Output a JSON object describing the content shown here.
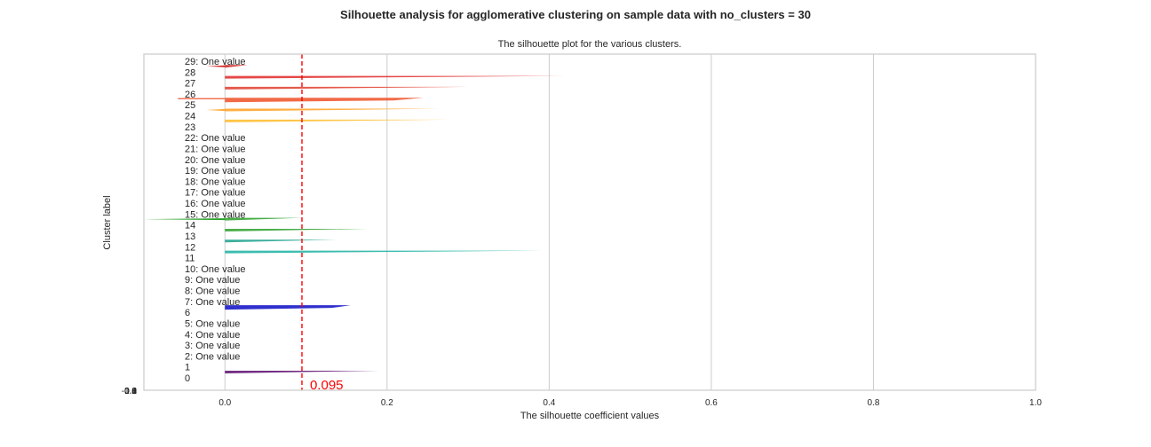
{
  "chart_data": {
    "type": "silhouette",
    "suptitle": "Silhouette analysis for agglomerative clustering on sample data with no_clusters = 30",
    "title": "The silhouette plot for the various clusters.",
    "xlabel": "The silhouette coefficient values",
    "ylabel": "Cluster label",
    "xlim": [
      -0.1,
      1.0
    ],
    "x_ticks": [
      0.0,
      0.2,
      0.4,
      0.6,
      0.8,
      1.0
    ],
    "x_tick_labels": [
      "0.0",
      "0.2",
      "0.4",
      "0.6",
      "0.8",
      "1.0"
    ],
    "y_tick_labels": [
      "-0.1",
      "0.0",
      "0.2",
      "0.4",
      "0.6",
      "0.8",
      "1.0"
    ],
    "grid": true,
    "mean_silhouette": 0.095,
    "mean_label": "0.095",
    "mean_line_color": "#ff0000",
    "clusters": [
      {
        "id": 0,
        "label": "0",
        "max": 0.19,
        "min": 0.0,
        "color": "#5b0a6e",
        "shape": "tri"
      },
      {
        "id": 1,
        "label": "1",
        "single": false,
        "color": "#5b0a6e",
        "shape": "none"
      },
      {
        "id": 2,
        "label": "2: One value",
        "single": true
      },
      {
        "id": 3,
        "label": "3: One value",
        "single": true
      },
      {
        "id": 4,
        "label": "4: One value",
        "single": true
      },
      {
        "id": 5,
        "label": "5: One value",
        "single": true
      },
      {
        "id": 6,
        "label": "6",
        "max": 0.155,
        "min": 0.0,
        "color": "#1a1ac8",
        "shape": "wedge"
      },
      {
        "id": 7,
        "label": "7: One value",
        "single": true
      },
      {
        "id": 8,
        "label": "8: One value",
        "single": true
      },
      {
        "id": 9,
        "label": "9: One value",
        "single": true
      },
      {
        "id": 10,
        "label": "10: One value",
        "single": true
      },
      {
        "id": 11,
        "label": "11",
        "max": 0.392,
        "min": 0.0,
        "color": "#1ab0a0",
        "shape": "tri"
      },
      {
        "id": 12,
        "label": "12",
        "max": 0.138,
        "min": 0.0,
        "color": "#1aa08c",
        "shape": "tri"
      },
      {
        "id": 13,
        "label": "13",
        "max": 0.175,
        "min": 0.0,
        "color": "#2ca02c",
        "shape": "tri"
      },
      {
        "id": 14,
        "label": "14",
        "max": 0.095,
        "min": -0.1,
        "color": "#28a028",
        "shape": "tri"
      },
      {
        "id": 15,
        "label": "15: One value",
        "single": true
      },
      {
        "id": 16,
        "label": "16: One value",
        "single": true
      },
      {
        "id": 17,
        "label": "17: One value",
        "single": true
      },
      {
        "id": 18,
        "label": "18: One value",
        "single": true
      },
      {
        "id": 19,
        "label": "19: One value",
        "single": true
      },
      {
        "id": 20,
        "label": "20: One value",
        "single": true
      },
      {
        "id": 21,
        "label": "21: One value",
        "single": true
      },
      {
        "id": 22,
        "label": "22: One value",
        "single": true
      },
      {
        "id": 23,
        "label": "23",
        "max": 0.276,
        "min": 0.0,
        "color": "#ffbb28",
        "shape": "tri"
      },
      {
        "id": 24,
        "label": "24",
        "max": 0.264,
        "min": -0.023,
        "color": "#ffa020",
        "shape": "tri"
      },
      {
        "id": 25,
        "label": "25",
        "max": 0.245,
        "min": -0.058,
        "color": "#f05a32",
        "shape": "wedge"
      },
      {
        "id": 26,
        "label": "26",
        "max": 0.299,
        "min": 0.0,
        "color": "#e03c2c",
        "shape": "tri"
      },
      {
        "id": 27,
        "label": "27",
        "max": 0.421,
        "min": 0.0,
        "color": "#e02828",
        "shape": "tri"
      },
      {
        "id": 28,
        "label": "28",
        "max": 0.028,
        "min": -0.023,
        "color": "#d02020",
        "shape": "tri"
      },
      {
        "id": 29,
        "label": "29: One value",
        "single": true
      }
    ]
  }
}
